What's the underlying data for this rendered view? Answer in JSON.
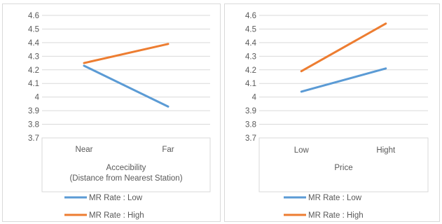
{
  "chart_data": [
    {
      "type": "line",
      "categories": [
        "Near",
        "Far"
      ],
      "xlabel": [
        "Accecibility",
        "(Distance from Nearest Station)"
      ],
      "ylabel": "",
      "ylim": [
        3.7,
        4.6
      ],
      "yticks": [
        "4.6",
        "4.5",
        "4.4",
        "4.3",
        "4.2",
        "4.1",
        "4",
        "3.9",
        "3.8",
        "3.7"
      ],
      "grid": true,
      "legend_position": "bottom",
      "series": [
        {
          "name": "MR Rate : Low",
          "color": "#5b9bd5",
          "values": [
            4.23,
            3.93
          ]
        },
        {
          "name": "MR Rate : High",
          "color": "#ed7d31",
          "values": [
            4.25,
            4.39
          ]
        }
      ]
    },
    {
      "type": "line",
      "categories": [
        "Low",
        "Hight"
      ],
      "xlabel": [
        "Price"
      ],
      "ylabel": "",
      "ylim": [
        3.7,
        4.6
      ],
      "yticks": [
        "4.6",
        "4.5",
        "4.4",
        "4.3",
        "4.2",
        "4.1",
        "4",
        "3.9",
        "3.8",
        "3.7"
      ],
      "grid": true,
      "legend_position": "bottom",
      "series": [
        {
          "name": "MR Rate : Low",
          "color": "#5b9bd5",
          "values": [
            4.04,
            4.21
          ]
        },
        {
          "name": "MR Rate : High",
          "color": "#ed7d31",
          "values": [
            4.19,
            4.54
          ]
        }
      ]
    }
  ]
}
